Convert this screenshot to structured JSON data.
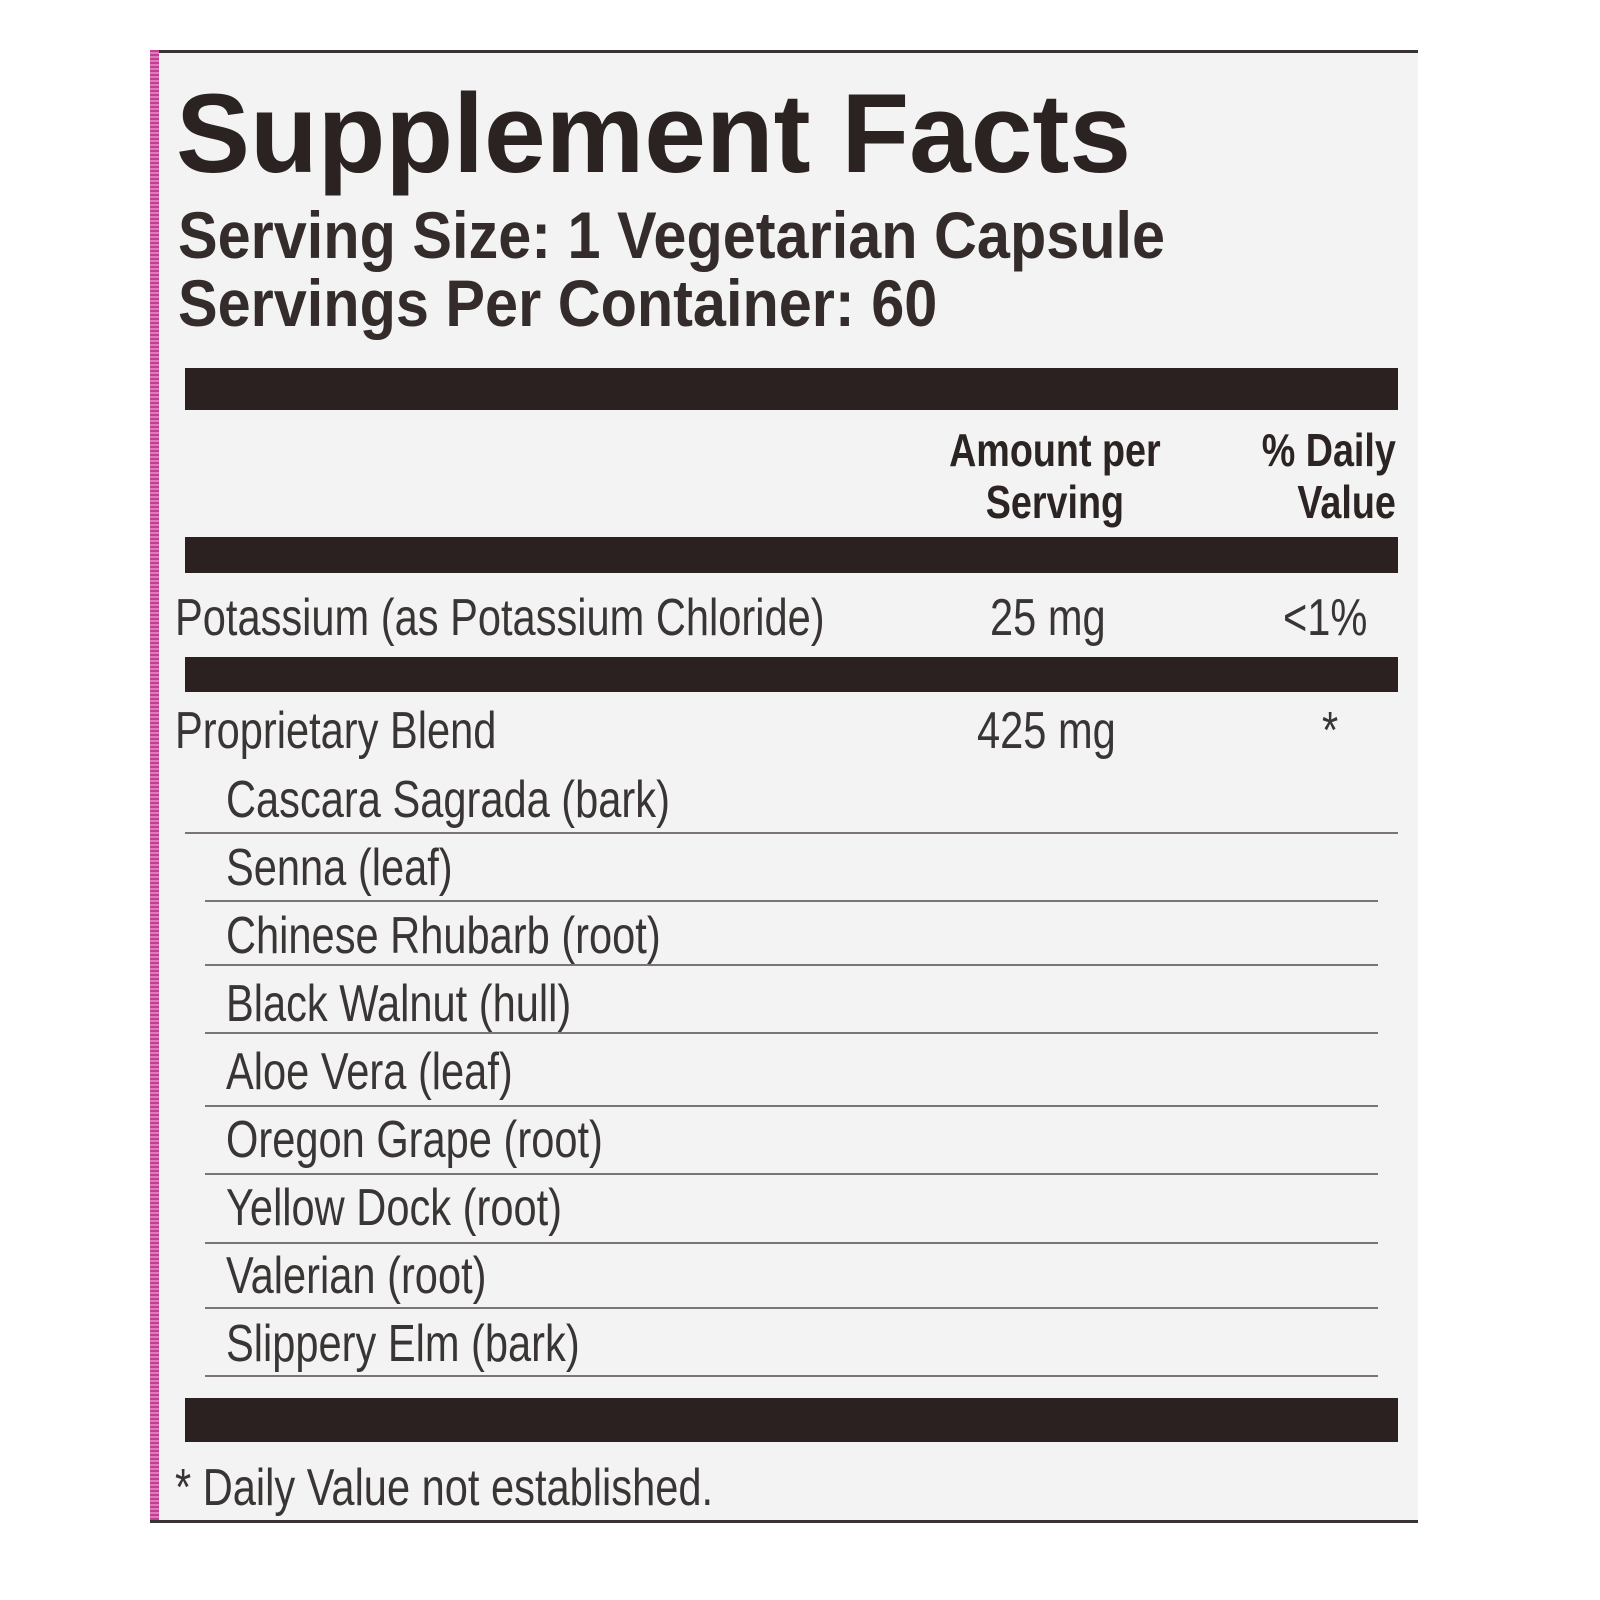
{
  "label": {
    "title": "Supplement Facts",
    "serving_size": "Serving Size: 1 Vegetarian Capsule",
    "servings_per_container": "Servings Per Container: 60",
    "header": {
      "amount": "Amount per Serving",
      "amount_line1": "Amount per",
      "amount_line2": "Serving",
      "dv_line1": "% Daily",
      "dv_line2": "Value"
    },
    "nutrients": [
      {
        "name": "Potassium (as Potassium Chloride)",
        "amount": "25 mg",
        "dv": "<1%"
      }
    ],
    "blend": {
      "name": "Proprietary Blend",
      "amount": "425 mg",
      "dv": "*",
      "ingredients": [
        "Cascara Sagrada (bark)",
        "Senna (leaf)",
        "Chinese Rhubarb (root)",
        "Black Walnut (hull)",
        "Aloe Vera (leaf)",
        "Oregon Grape (root)",
        "Yellow Dock (root)",
        "Valerian (root)",
        "Slippery Elm (bark)"
      ]
    },
    "footnote": "* Daily Value not established."
  },
  "colors": {
    "ink": "#2b2322",
    "accent_strip": "#c2418f",
    "background": "#f4f3f3"
  }
}
